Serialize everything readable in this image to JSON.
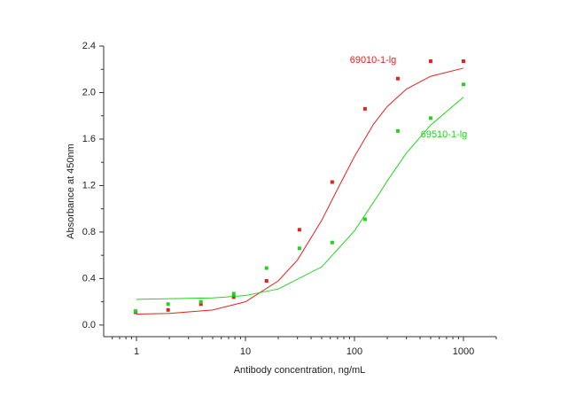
{
  "chart_data": {
    "type": "scatter",
    "x_label": "Antibody concentration, ng/mL",
    "y_label": "Absorbance at 450nm",
    "xscale": "log",
    "xlim": [
      0.5,
      2000
    ],
    "ylim": [
      -0.1,
      2.4
    ],
    "xticks": [
      1,
      10,
      100,
      1000
    ],
    "xticks_minor": [
      0.6,
      0.7,
      0.8,
      0.9,
      2,
      3,
      4,
      5,
      6,
      7,
      8,
      9,
      20,
      30,
      40,
      50,
      60,
      70,
      80,
      90,
      200,
      300,
      400,
      500,
      600,
      700,
      800,
      900,
      2000
    ],
    "yticks": [
      {
        "value": 0,
        "label": "0.0"
      },
      {
        "value": 0.4,
        "label": "0.4"
      },
      {
        "value": 0.8,
        "label": "0.8"
      },
      {
        "value": 1.2,
        "label": "1.2"
      },
      {
        "value": 1.6,
        "label": "1.6"
      },
      {
        "value": 2.0,
        "label": "2.0"
      },
      {
        "value": 2.4,
        "label": "2.4"
      }
    ],
    "yticks_minor": [
      0.2,
      0.6,
      1.0,
      1.4,
      1.8,
      2.2
    ],
    "x": [
      0.98,
      1.95,
      3.9,
      7.8,
      15.6,
      31.25,
      62.5,
      125,
      250,
      500,
      1000
    ],
    "series": [
      {
        "name": "69010-1-lg",
        "color": "#e8201c",
        "values": [
          0.11,
          0.13,
          0.18,
          0.24,
          0.38,
          0.82,
          1.23,
          1.86,
          2.12,
          2.27,
          2.27
        ],
        "fit": {
          "x": [
            1,
            2,
            5,
            10,
            20,
            30,
            50,
            70,
            100,
            150,
            200,
            300,
            500,
            1000
          ],
          "values": [
            0.094,
            0.1,
            0.13,
            0.2,
            0.38,
            0.56,
            0.9,
            1.17,
            1.45,
            1.73,
            1.88,
            2.03,
            2.14,
            2.21
          ]
        }
      },
      {
        "name": "69510-1-lg",
        "color": "#22d41c",
        "values": [
          0.12,
          0.18,
          0.2,
          0.27,
          0.49,
          0.66,
          0.71,
          0.91,
          1.67,
          1.78,
          2.07
        ],
        "fit": {
          "x": [
            1,
            5,
            10,
            20,
            50,
            100,
            170,
            200,
            300,
            500,
            1000
          ],
          "values": [
            0.221,
            0.233,
            0.254,
            0.31,
            0.5,
            0.81,
            1.135,
            1.24,
            1.48,
            1.72,
            1.96
          ]
        }
      }
    ]
  }
}
